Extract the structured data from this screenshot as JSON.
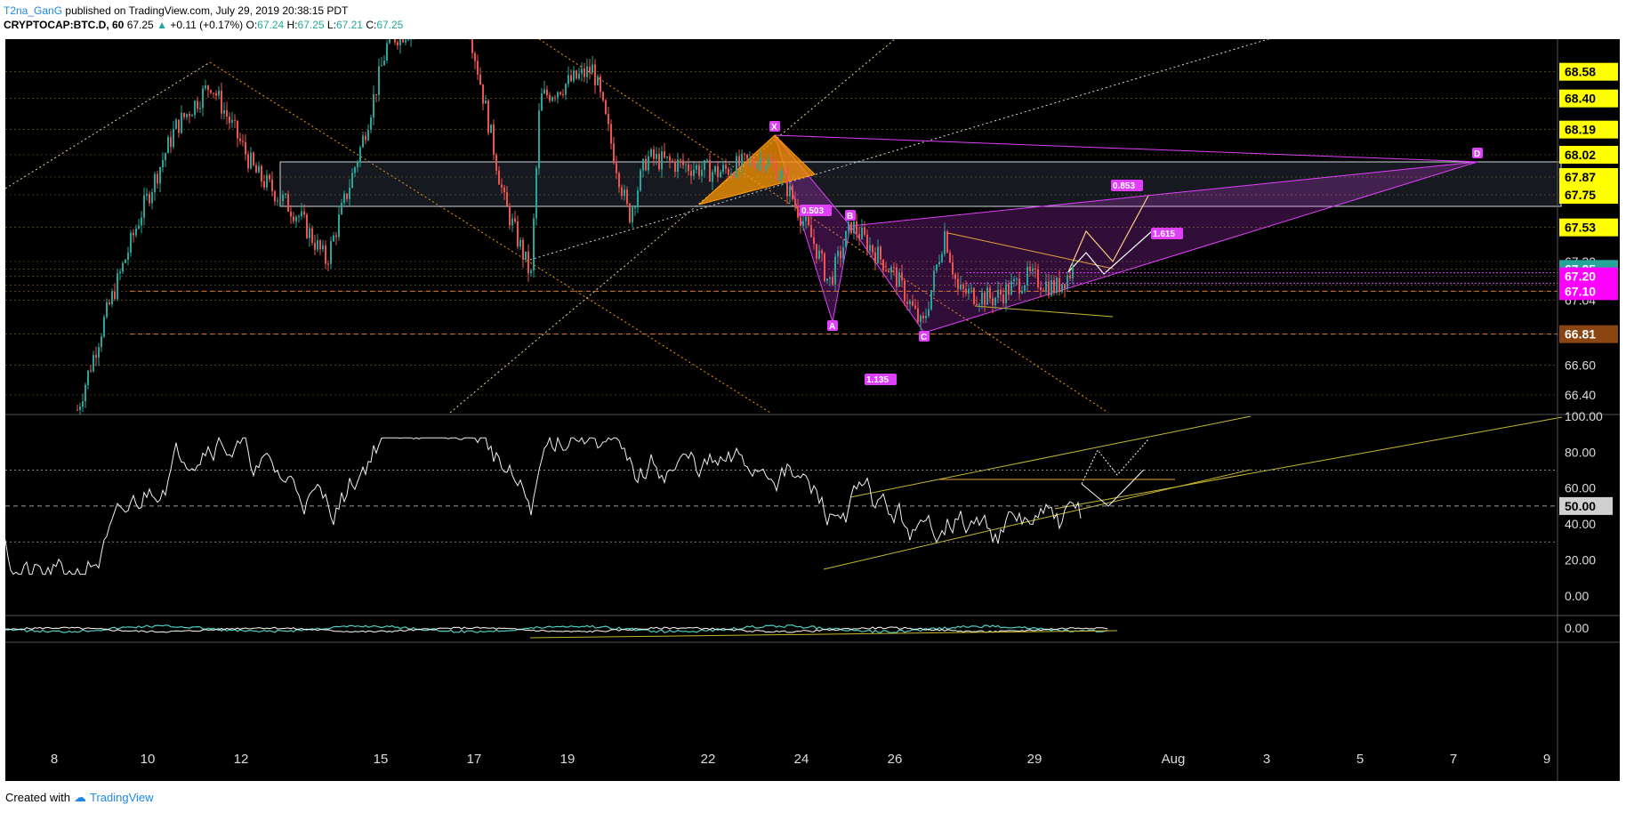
{
  "header": {
    "author": "T2na_GanG",
    "published": "published on TradingView.com, July 29, 2019 20:38:15 PDT",
    "symbol": "CRYPTOCAP:BTC.D, 60",
    "last": "67.25",
    "change": "+0.11 (+0.17%)",
    "o_label": "O:",
    "o": "67.24",
    "h_label": "H:",
    "h": "67.25",
    "l_label": "L:",
    "l": "67.21",
    "c_label": "C:",
    "c": "67.25"
  },
  "footer": {
    "created": "Created with",
    "brand": "TradingView"
  },
  "colors": {
    "up": "#26a69a",
    "down": "#ef5350",
    "grid": "#e6c24a",
    "harmonic": "#e040fb",
    "orange": "#ff9800",
    "badge_yellow": "#ffff00",
    "badge_teal": "#26a69a",
    "badge_magenta": "#ff00ff",
    "badge_brown": "#8b4513"
  },
  "chart_data": [
    {
      "type": "candlestick",
      "panel": "price",
      "ylim": [
        66.28,
        68.8
      ],
      "x_ticks": [
        "8",
        "10",
        "12",
        "15",
        "17",
        "19",
        "22",
        "24",
        "26",
        "29",
        "Aug",
        "3",
        "5",
        "7",
        "9"
      ],
      "y_ticks": [
        "68.58",
        "68.40",
        "68.19",
        "68.02",
        "67.87",
        "67.75",
        "67.53",
        "67.30",
        "67.25",
        "67.20",
        "67.14",
        "67.10",
        "67.04",
        "66.81",
        "66.60",
        "66.40"
      ],
      "badges": [
        {
          "label": "68.58",
          "value": 68.58,
          "style": "yellow"
        },
        {
          "label": "68.40",
          "value": 68.4,
          "style": "yellow"
        },
        {
          "label": "68.19",
          "value": 68.19,
          "style": "yellow"
        },
        {
          "label": "68.02",
          "value": 68.02,
          "style": "yellow"
        },
        {
          "label": "67.87",
          "value": 67.87,
          "style": "yellow"
        },
        {
          "label": "67.75",
          "value": 67.75,
          "style": "yellow"
        },
        {
          "label": "67.53",
          "value": 67.53,
          "style": "yellow"
        },
        {
          "label": "67.25",
          "value": 67.25,
          "style": "teal"
        },
        {
          "label": "67.20",
          "value": 67.2,
          "style": "magenta"
        },
        {
          "label": "67.10",
          "value": 67.1,
          "style": "magenta"
        },
        {
          "label": "66.81",
          "value": 66.81,
          "style": "brown"
        }
      ],
      "pattern_labels": [
        "X",
        "A",
        "B",
        "C",
        "D"
      ],
      "ratios": [
        "0.503",
        "1.135",
        "0.853",
        "1.615"
      ],
      "ohlc_last": {
        "o": 67.24,
        "h": 67.25,
        "l": 67.21,
        "c": 67.25
      }
    },
    {
      "type": "line",
      "panel": "rsi",
      "ylim": [
        -10,
        100
      ],
      "y_ticks": [
        "100.00",
        "80.00",
        "60.00",
        "40.00",
        "20.00",
        "0.00"
      ],
      "current_label": "50.00"
    },
    {
      "type": "line",
      "panel": "oscillator",
      "y_ticks": [
        "0.00"
      ]
    }
  ]
}
